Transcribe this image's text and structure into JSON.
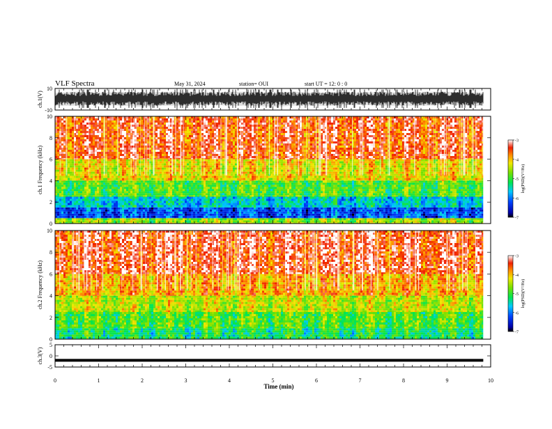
{
  "header": {
    "title": "VLF Spectra",
    "date": "May 31, 2024",
    "station": "station= OUI",
    "start": "start  UT =  12: 0  : 0"
  },
  "chart_data": [
    {
      "type": "line",
      "panel": "ch1-waveform",
      "ylabel": "ch.1(V)",
      "ylim": [
        -10,
        10
      ],
      "yticks": [
        10,
        -10
      ],
      "x": [
        0,
        0.5,
        1,
        1.5,
        2,
        2.5,
        3,
        3.5,
        4,
        4.5,
        5,
        5.5,
        6,
        6.5,
        7,
        7.5,
        8,
        8.5,
        9,
        9.5,
        9.83
      ],
      "envelope_max_V": [
        6,
        7,
        6,
        7,
        6,
        7,
        7,
        6,
        7,
        7,
        6,
        7,
        6,
        7,
        6,
        7,
        6,
        7,
        7,
        6,
        6
      ],
      "envelope_min_V": [
        -6,
        -6,
        -5,
        -6,
        -7,
        -6,
        -6,
        -5,
        -6,
        -6,
        -7,
        -6,
        -6,
        -6,
        -5,
        -6,
        -6,
        -6,
        -5,
        -6,
        -6
      ]
    },
    {
      "type": "heatmap",
      "panel": "ch1-spectrogram",
      "ylabel": "ch.1 Frequency (kHz)",
      "ylim": [
        0,
        10
      ],
      "yticks": [
        0,
        2,
        4,
        6,
        8,
        10
      ],
      "x_range_min": [
        0,
        9.83
      ],
      "colorbar": {
        "label": "log(PSD)(V²/Hz)",
        "ticks": [
          -3,
          -4,
          -5,
          -6,
          -7
        ],
        "range": [
          -7,
          -3
        ]
      },
      "band_edges_kHz": [
        0,
        0.5,
        1.5,
        2.5,
        4,
        6,
        10
      ],
      "band_mean_log_psd": [
        -4.6,
        -6.2,
        -5.6,
        -4.9,
        -4.2,
        -3.5
      ]
    },
    {
      "type": "heatmap",
      "panel": "ch2-spectrogram",
      "ylabel": "ch.2 Frequency (kHz)",
      "ylim": [
        0,
        10
      ],
      "yticks": [
        0,
        2,
        4,
        6,
        8,
        10
      ],
      "x_range_min": [
        0,
        9.83
      ],
      "colorbar": {
        "label": "log(PSD)(V²/Hz)",
        "ticks": [
          -3,
          -4,
          -5,
          -6,
          -7
        ],
        "range": [
          -7,
          -3
        ]
      },
      "band_edges_kHz": [
        0,
        1,
        2.5,
        4,
        6,
        10
      ],
      "band_mean_log_psd": [
        -5.2,
        -4.9,
        -4.4,
        -3.9,
        -3.4
      ]
    },
    {
      "type": "line",
      "panel": "ch3-waveform",
      "ylabel": "ch.3(V)",
      "ylim": [
        -5,
        5
      ],
      "yticks": [
        5,
        0,
        -5
      ],
      "x": [
        0,
        9.83
      ],
      "y": [
        -2,
        -2
      ]
    }
  ],
  "xaxis": {
    "label": "Time (min)",
    "ticks": [
      "0",
      "1",
      "2",
      "3",
      "4",
      "5",
      "6",
      "7",
      "8",
      "9",
      "10"
    ],
    "range": [
      0,
      10
    ]
  }
}
